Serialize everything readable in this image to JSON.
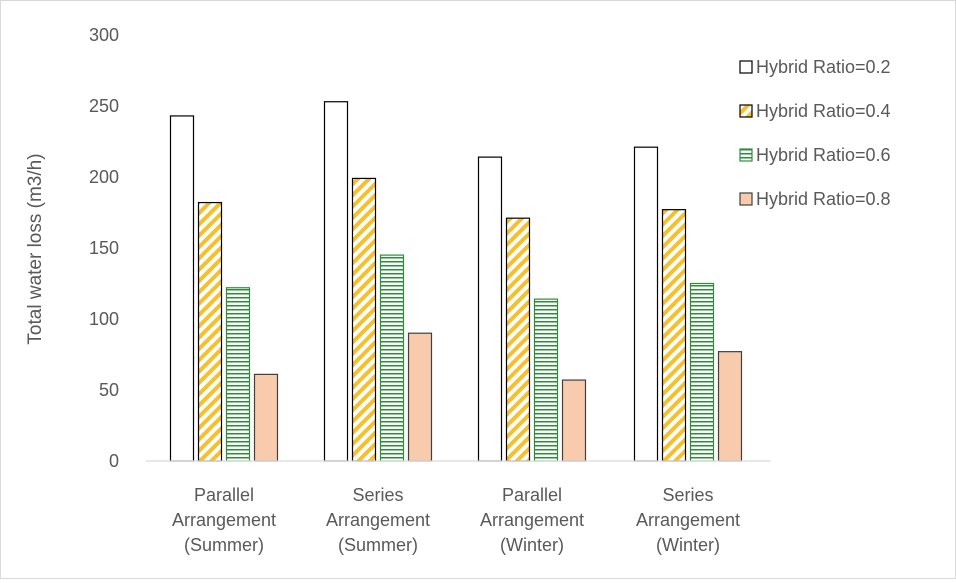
{
  "chart_data": {
    "type": "bar",
    "title": "",
    "xlabel": "",
    "ylabel": "Total water loss (m3/h)",
    "ylim": [
      0,
      300
    ],
    "yticks": [
      0,
      50,
      100,
      150,
      200,
      250,
      300
    ],
    "grid": false,
    "legend_position": "right",
    "categories": [
      [
        "Parallel",
        "Arrangement",
        "(Summer)"
      ],
      [
        "Series",
        "Arrangement",
        "(Summer)"
      ],
      [
        "Parallel",
        "Arrangement",
        "(Winter)"
      ],
      [
        "Series",
        "Arrangement",
        "(Winter)"
      ]
    ],
    "series": [
      {
        "name": "Hybrid Ratio=0.2",
        "values": [
          243,
          253,
          214,
          221
        ],
        "fill": "#ffffff",
        "pattern": "none",
        "pattern_color": "#000000"
      },
      {
        "name": "Hybrid Ratio=0.4",
        "values": [
          182,
          199,
          171,
          177
        ],
        "fill": "#ffffff",
        "pattern": "diagonal",
        "pattern_color": "#f5c02c"
      },
      {
        "name": "Hybrid Ratio=0.6",
        "values": [
          122,
          145,
          114,
          125
        ],
        "fill": "#ffffff",
        "pattern": "horizontal",
        "pattern_color": "#2e8b3a"
      },
      {
        "name": "Hybrid Ratio=0.8",
        "values": [
          61,
          90,
          57,
          77
        ],
        "fill": "#f8cbad",
        "pattern": "none",
        "pattern_color": "#f8cbad"
      }
    ]
  }
}
